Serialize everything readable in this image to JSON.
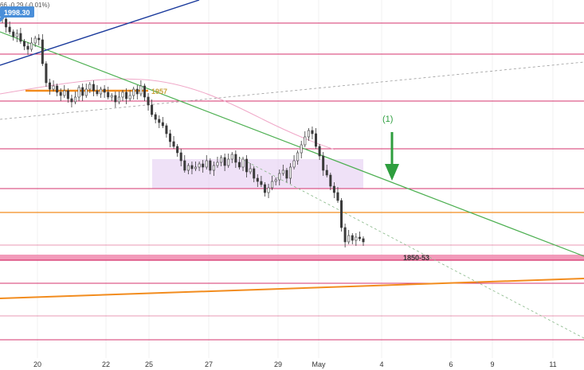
{
  "header": {
    "change_text": "66 -0.29 (-0.01%)",
    "price_badge": "1998.30"
  },
  "colors": {
    "candle": "#3a3a3a",
    "support_red": "#d6336c",
    "orange": "#f28c1e",
    "green": "#4caf50",
    "blue": "#1a3a9c",
    "purple_zone": "#e1c8f0",
    "pink_ma": "#f0a8c8",
    "badge": "#4a8fd9"
  },
  "chart_data": {
    "type": "candlestick",
    "x_axis": {
      "tick_labels": [
        "20",
        "22",
        "25",
        "27",
        "29",
        "May",
        "4",
        "6",
        "9",
        "11"
      ]
    },
    "annotations": {
      "level_1957": "1957",
      "zone_label": "1850-53",
      "wave_label": "(1)"
    },
    "price_trace": [
      1998,
      1993,
      1990,
      1987,
      1989,
      1984,
      1981,
      1979,
      1983,
      1986,
      1985,
      1970,
      1958,
      1954,
      1956,
      1952,
      1950,
      1953,
      1948,
      1946,
      1949,
      1955,
      1950,
      1954,
      1957,
      1953,
      1951,
      1954,
      1952,
      1949,
      1950,
      1946,
      1949,
      1952,
      1948,
      1950,
      1954,
      1951,
      1956,
      1949,
      1944,
      1938,
      1935,
      1933,
      1931,
      1926,
      1921,
      1918,
      1914,
      1909,
      1903,
      1906,
      1904,
      1905,
      1907,
      1905,
      1909,
      1903,
      1906,
      1908,
      1911,
      1906,
      1910,
      1913,
      1908,
      1905,
      1910,
      1902,
      1904,
      1898,
      1896,
      1894,
      1889,
      1892,
      1896,
      1897,
      1901,
      1903,
      1898,
      1905,
      1909,
      1914,
      1919,
      1924,
      1928,
      1926,
      1918,
      1912,
      1903,
      1900,
      1893,
      1889,
      1884,
      1867,
      1858,
      1862,
      1859,
      1861,
      1860,
      1858
    ],
    "price_scale": {
      "top_price": 2010,
      "price_per_px": 0.5
    }
  }
}
